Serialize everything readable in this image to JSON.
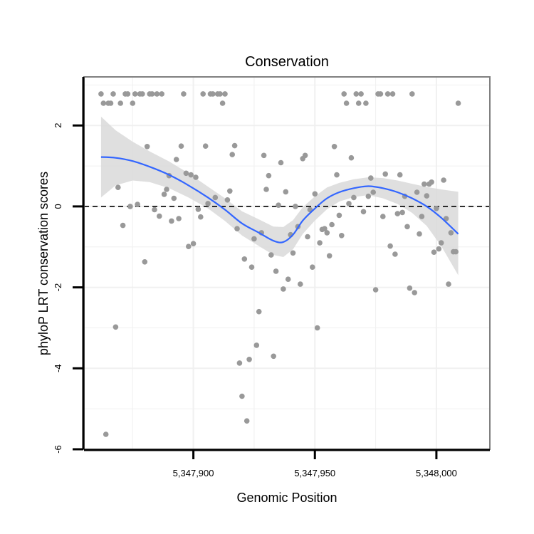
{
  "chart_data": {
    "type": "scatter",
    "title": "Conservation",
    "xlabel": "Genomic Position",
    "ylabel": "phyloP LRT conservation scores",
    "xlim": [
      5347855,
      5348022
    ],
    "ylim": [
      -6.0,
      3.2
    ],
    "x_ticks": [
      5347900,
      5347950,
      5348000
    ],
    "x_tick_labels": [
      "5,347,900",
      "5,347,950",
      "5,348,000"
    ],
    "y_ticks": [
      -6,
      -4,
      -2,
      0,
      2
    ],
    "y_tick_labels": [
      "-6",
      "-4",
      "-2",
      "0",
      "2"
    ],
    "grid": true,
    "reference_line": {
      "y": 0,
      "style": "dashed",
      "color": "#000000"
    },
    "colors": {
      "points": "#999999",
      "smooth": "#3366FF",
      "ribbon": "#D9D9D9",
      "panel_border": "#808080",
      "grid": "#F0F0F0"
    },
    "points": [
      {
        "x": 5347862,
        "y": 2.78
      },
      {
        "x": 5347863,
        "y": 2.55
      },
      {
        "x": 5347864,
        "y": -5.63
      },
      {
        "x": 5347865,
        "y": 2.55
      },
      {
        "x": 5347866,
        "y": 2.55
      },
      {
        "x": 5347867,
        "y": 2.78
      },
      {
        "x": 5347868,
        "y": -2.98
      },
      {
        "x": 5347869,
        "y": 0.47
      },
      {
        "x": 5347870,
        "y": 2.55
      },
      {
        "x": 5347871,
        "y": -0.47
      },
      {
        "x": 5347872,
        "y": 2.78
      },
      {
        "x": 5347873,
        "y": 2.78
      },
      {
        "x": 5347874,
        "y": 0.0
      },
      {
        "x": 5347875,
        "y": 2.55
      },
      {
        "x": 5347876,
        "y": 2.78
      },
      {
        "x": 5347877,
        "y": 0.05
      },
      {
        "x": 5347878,
        "y": 2.78
      },
      {
        "x": 5347879,
        "y": 2.78
      },
      {
        "x": 5347880,
        "y": -1.37
      },
      {
        "x": 5347881,
        "y": 1.48
      },
      {
        "x": 5347882,
        "y": 2.78
      },
      {
        "x": 5347883,
        "y": 2.78
      },
      {
        "x": 5347884,
        "y": -0.08
      },
      {
        "x": 5347885,
        "y": 2.78
      },
      {
        "x": 5347886,
        "y": -0.24
      },
      {
        "x": 5347887,
        "y": 2.78
      },
      {
        "x": 5347888,
        "y": 0.3
      },
      {
        "x": 5347889,
        "y": 0.42
      },
      {
        "x": 5347890,
        "y": 0.76
      },
      {
        "x": 5347891,
        "y": -0.36
      },
      {
        "x": 5347892,
        "y": 0.2
      },
      {
        "x": 5347893,
        "y": 1.16
      },
      {
        "x": 5347894,
        "y": -0.3
      },
      {
        "x": 5347895,
        "y": 1.49
      },
      {
        "x": 5347896,
        "y": 2.78
      },
      {
        "x": 5347897,
        "y": 0.82
      },
      {
        "x": 5347898,
        "y": -0.99
      },
      {
        "x": 5347899,
        "y": 0.78
      },
      {
        "x": 5347900,
        "y": -0.92
      },
      {
        "x": 5347901,
        "y": 0.72
      },
      {
        "x": 5347902,
        "y": -0.07
      },
      {
        "x": 5347903,
        "y": -0.26
      },
      {
        "x": 5347904,
        "y": 2.78
      },
      {
        "x": 5347905,
        "y": 1.49
      },
      {
        "x": 5347906,
        "y": 0.07
      },
      {
        "x": 5347907,
        "y": 2.78
      },
      {
        "x": 5347908,
        "y": 2.78
      },
      {
        "x": 5347909,
        "y": 0.22
      },
      {
        "x": 5347910,
        "y": 2.78
      },
      {
        "x": 5347911,
        "y": 2.78
      },
      {
        "x": 5347912,
        "y": 2.55
      },
      {
        "x": 5347913,
        "y": 2.78
      },
      {
        "x": 5347914,
        "y": 0.16
      },
      {
        "x": 5347915,
        "y": 0.38
      },
      {
        "x": 5347916,
        "y": 1.28
      },
      {
        "x": 5347917,
        "y": 1.5
      },
      {
        "x": 5347918,
        "y": -0.55
      },
      {
        "x": 5347919,
        "y": -3.87
      },
      {
        "x": 5347920,
        "y": -4.69
      },
      {
        "x": 5347921,
        "y": -1.3
      },
      {
        "x": 5347922,
        "y": -5.3
      },
      {
        "x": 5347923,
        "y": -3.78
      },
      {
        "x": 5347924,
        "y": -1.5
      },
      {
        "x": 5347925,
        "y": -0.8
      },
      {
        "x": 5347926,
        "y": -3.43
      },
      {
        "x": 5347927,
        "y": -2.6
      },
      {
        "x": 5347928,
        "y": -0.65
      },
      {
        "x": 5347929,
        "y": 1.26
      },
      {
        "x": 5347930,
        "y": 0.42
      },
      {
        "x": 5347931,
        "y": 0.76
      },
      {
        "x": 5347932,
        "y": -1.2
      },
      {
        "x": 5347933,
        "y": -3.7
      },
      {
        "x": 5347934,
        "y": -1.6
      },
      {
        "x": 5347935,
        "y": 0.03
      },
      {
        "x": 5347936,
        "y": 1.08
      },
      {
        "x": 5347937,
        "y": -2.04
      },
      {
        "x": 5347938,
        "y": 0.36
      },
      {
        "x": 5347939,
        "y": -1.8
      },
      {
        "x": 5347940,
        "y": -0.7
      },
      {
        "x": 5347941,
        "y": -1.15
      },
      {
        "x": 5347942,
        "y": 0.0
      },
      {
        "x": 5347943,
        "y": -0.5
      },
      {
        "x": 5347944,
        "y": -1.92
      },
      {
        "x": 5347945,
        "y": 1.18
      },
      {
        "x": 5347946,
        "y": 1.26
      },
      {
        "x": 5347947,
        "y": -0.75
      },
      {
        "x": 5347948,
        "y": -0.08
      },
      {
        "x": 5347949,
        "y": -1.5
      },
      {
        "x": 5347950,
        "y": 0.31
      },
      {
        "x": 5347951,
        "y": -3.0
      },
      {
        "x": 5347952,
        "y": -0.9
      },
      {
        "x": 5347953,
        "y": -0.57
      },
      {
        "x": 5347954,
        "y": -0.55
      },
      {
        "x": 5347955,
        "y": -0.65
      },
      {
        "x": 5347956,
        "y": -1.22
      },
      {
        "x": 5347957,
        "y": -0.45
      },
      {
        "x": 5347958,
        "y": 1.48
      },
      {
        "x": 5347959,
        "y": 0.78
      },
      {
        "x": 5347960,
        "y": -0.22
      },
      {
        "x": 5347961,
        "y": -0.72
      },
      {
        "x": 5347962,
        "y": 2.78
      },
      {
        "x": 5347963,
        "y": 2.55
      },
      {
        "x": 5347964,
        "y": 0.07
      },
      {
        "x": 5347965,
        "y": 1.2
      },
      {
        "x": 5347966,
        "y": 0.22
      },
      {
        "x": 5347967,
        "y": 2.78
      },
      {
        "x": 5347968,
        "y": 2.55
      },
      {
        "x": 5347969,
        "y": 2.78
      },
      {
        "x": 5347970,
        "y": -0.13
      },
      {
        "x": 5347971,
        "y": 2.55
      },
      {
        "x": 5347972,
        "y": 0.25
      },
      {
        "x": 5347973,
        "y": 0.7
      },
      {
        "x": 5347974,
        "y": 0.35
      },
      {
        "x": 5347975,
        "y": -2.06
      },
      {
        "x": 5347976,
        "y": 2.78
      },
      {
        "x": 5347977,
        "y": 2.78
      },
      {
        "x": 5347978,
        "y": -0.25
      },
      {
        "x": 5347979,
        "y": 0.8
      },
      {
        "x": 5347980,
        "y": 2.78
      },
      {
        "x": 5347981,
        "y": -0.98
      },
      {
        "x": 5347982,
        "y": 2.78
      },
      {
        "x": 5347983,
        "y": -1.18
      },
      {
        "x": 5347984,
        "y": -0.18
      },
      {
        "x": 5347985,
        "y": 0.78
      },
      {
        "x": 5347986,
        "y": -0.15
      },
      {
        "x": 5347987,
        "y": 0.25
      },
      {
        "x": 5347988,
        "y": -0.5
      },
      {
        "x": 5347989,
        "y": -2.02
      },
      {
        "x": 5347990,
        "y": 2.78
      },
      {
        "x": 5347991,
        "y": -2.13
      },
      {
        "x": 5347992,
        "y": 0.35
      },
      {
        "x": 5347993,
        "y": -0.68
      },
      {
        "x": 5347994,
        "y": -0.25
      },
      {
        "x": 5347995,
        "y": 0.55
      },
      {
        "x": 5347996,
        "y": 0.26
      },
      {
        "x": 5347997,
        "y": 0.55
      },
      {
        "x": 5347998,
        "y": 0.6
      },
      {
        "x": 5347999,
        "y": -1.13
      },
      {
        "x": 5348000,
        "y": -0.05
      },
      {
        "x": 5348001,
        "y": -1.05
      },
      {
        "x": 5348002,
        "y": -0.9
      },
      {
        "x": 5348003,
        "y": 0.65
      },
      {
        "x": 5348004,
        "y": -0.3
      },
      {
        "x": 5348005,
        "y": -1.92
      },
      {
        "x": 5348006,
        "y": -0.65
      },
      {
        "x": 5348007,
        "y": -1.12
      },
      {
        "x": 5348008,
        "y": -1.12
      },
      {
        "x": 5348009,
        "y": 2.55
      }
    ],
    "smooth": {
      "x": [
        5347862,
        5347868,
        5347875,
        5347882,
        5347890,
        5347898,
        5347906,
        5347913,
        5347920,
        5347927,
        5347933,
        5347937,
        5347941,
        5347945,
        5347950,
        5347955,
        5347960,
        5347966,
        5347972,
        5347978,
        5347984,
        5347990,
        5347996,
        5348002,
        5348009
      ],
      "y": [
        1.22,
        1.2,
        1.12,
        0.98,
        0.78,
        0.52,
        0.22,
        -0.08,
        -0.42,
        -0.65,
        -0.85,
        -0.88,
        -0.7,
        -0.35,
        -0.05,
        0.2,
        0.35,
        0.45,
        0.5,
        0.45,
        0.35,
        0.2,
        0.0,
        -0.28,
        -0.68
      ],
      "lower": [
        0.22,
        0.52,
        0.64,
        0.6,
        0.45,
        0.22,
        -0.05,
        -0.36,
        -0.72,
        -0.98,
        -1.2,
        -1.25,
        -1.06,
        -0.68,
        -0.35,
        -0.07,
        0.12,
        0.23,
        0.28,
        0.2,
        0.06,
        -0.16,
        -0.48,
        -0.98,
        -1.7
      ],
      "upper": [
        2.22,
        1.88,
        1.6,
        1.36,
        1.11,
        0.82,
        0.49,
        0.2,
        -0.12,
        -0.32,
        -0.5,
        -0.51,
        -0.34,
        -0.02,
        0.25,
        0.47,
        0.58,
        0.67,
        0.72,
        0.7,
        0.64,
        0.56,
        0.48,
        0.42,
        0.36
      ]
    }
  }
}
